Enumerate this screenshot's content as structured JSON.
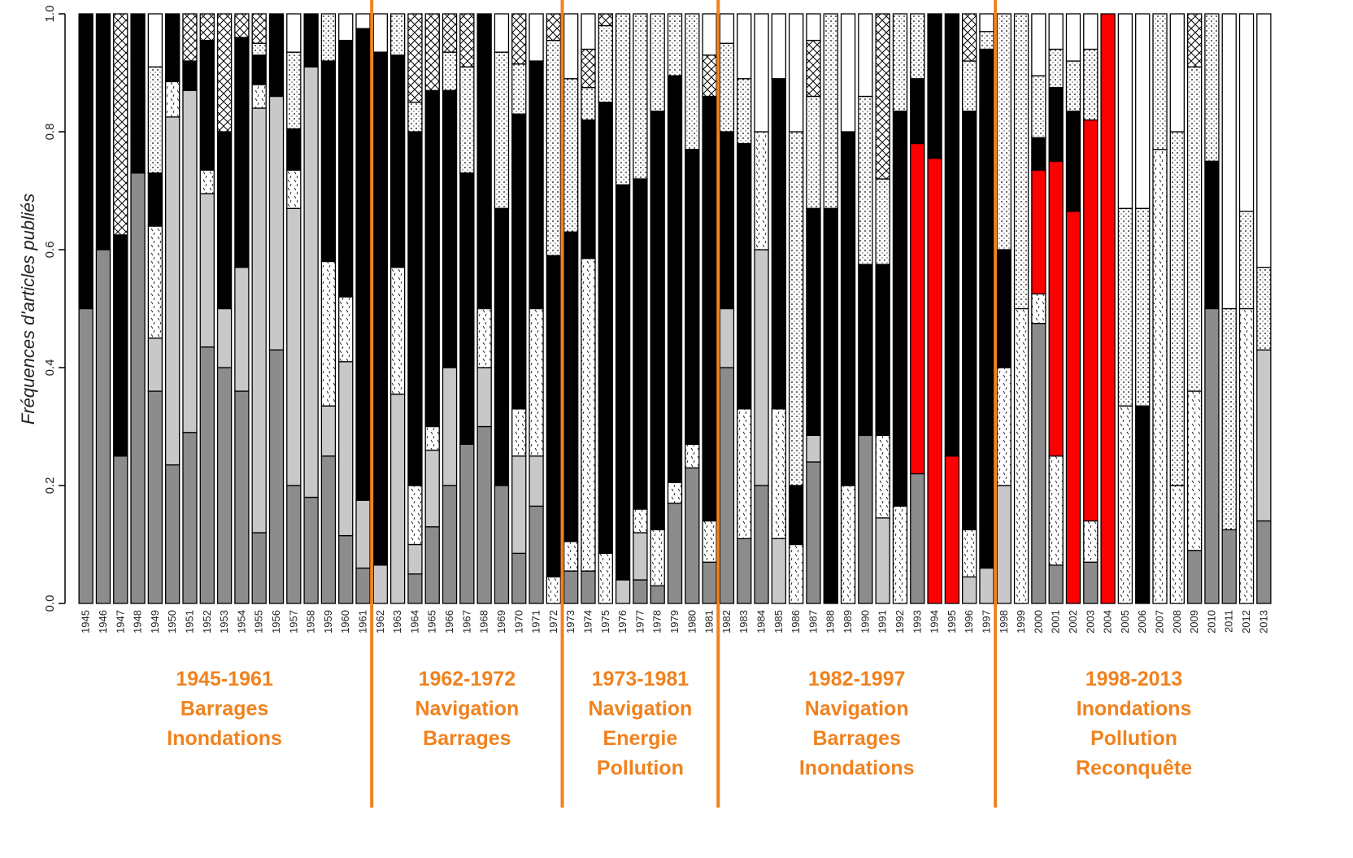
{
  "chart_data": {
    "type": "stacked-bar",
    "y_label": "Fréquences d'articles publiés",
    "categories": [
      "1945",
      "1946",
      "1947",
      "1948",
      "1949",
      "1950",
      "1951",
      "1952",
      "1953",
      "1954",
      "1955",
      "1956",
      "1957",
      "1958",
      "1959",
      "1960",
      "1961",
      "1962",
      "1963",
      "1964",
      "1965",
      "1966",
      "1967",
      "1968",
      "1969",
      "1970",
      "1971",
      "1972",
      "1973",
      "1974",
      "1975",
      "1976",
      "1977",
      "1978",
      "1979",
      "1980",
      "1981",
      "1982",
      "1983",
      "1984",
      "1985",
      "1986",
      "1987",
      "1988",
      "1989",
      "1990",
      "1991",
      "1992",
      "1993",
      "1994",
      "1995",
      "1996",
      "1997",
      "1998",
      "1999",
      "2000",
      "2001",
      "2002",
      "2003",
      "2004",
      "2005",
      "2006",
      "2007",
      "2008",
      "2009",
      "2010",
      "2011",
      "2012",
      "2013"
    ],
    "ylim": [
      0,
      1
    ],
    "yticks": [
      {
        "value": 0,
        "label": "0.0"
      },
      {
        "value": 0.2,
        "label": "0.2"
      },
      {
        "value": 0.4,
        "label": "0.4"
      },
      {
        "value": 0.6,
        "label": "0.6"
      },
      {
        "value": 0.8,
        "label": "0.8"
      },
      {
        "value": 1,
        "label": "1.0"
      }
    ],
    "series": [
      {
        "color": "#8c8c8c",
        "values": [
          0.5,
          0.6,
          0.25,
          0.73,
          0.36,
          0.235,
          0.29,
          0.435,
          0.4,
          0.36,
          0.12,
          0.43,
          0.2,
          0.18,
          0.25,
          0.115,
          0.06,
          0,
          0,
          0.05,
          0.13,
          0.2,
          0.27,
          0.3,
          0.2,
          0.085,
          0.165,
          0,
          0.055,
          0.055,
          0,
          0,
          0.04,
          0.03,
          0.17,
          0.23,
          0.07,
          0.4,
          0.11,
          0.2,
          0,
          0,
          0.24,
          0,
          0,
          0.285,
          0,
          0,
          0.22,
          0,
          0,
          0,
          0,
          0,
          0,
          0.475,
          0.065,
          0,
          0.07,
          0,
          0,
          0,
          0,
          0,
          0.09,
          0.5,
          0.125,
          0,
          0.14
        ]
      },
      {
        "color": "#c8c8c8",
        "values": [
          0,
          0,
          0,
          0,
          0.09,
          0.59,
          0.58,
          0.26,
          0.1,
          0.21,
          0.72,
          0.43,
          0.47,
          0.73,
          0.085,
          0.295,
          0.115,
          0.065,
          0.355,
          0.05,
          0.13,
          0.2,
          0,
          0.1,
          0,
          0.165,
          0.085,
          0,
          0,
          0,
          0,
          0.04,
          0.08,
          0,
          0,
          0,
          0,
          0.1,
          0,
          0.4,
          0.11,
          0,
          0.045,
          0,
          0,
          0,
          0.145,
          0,
          0,
          0,
          0,
          0.045,
          0.06,
          0.2,
          0,
          0,
          0,
          0,
          0,
          0,
          0,
          0,
          0,
          0,
          0,
          0,
          0,
          0,
          0.29
        ]
      },
      {
        "color": "#ffffff",
        "pattern": "dashes",
        "values": [
          0,
          0,
          0,
          0,
          0.19,
          0.06,
          0,
          0.04,
          0,
          0,
          0.04,
          0,
          0.065,
          0,
          0.245,
          0.11,
          0,
          0,
          0.215,
          0.1,
          0.04,
          0,
          0,
          0.1,
          0,
          0.08,
          0.25,
          0.045,
          0.05,
          0.53,
          0.085,
          0,
          0.04,
          0.095,
          0.035,
          0.04,
          0.07,
          0,
          0.22,
          0.2,
          0.22,
          0.1,
          0,
          0,
          0.2,
          0,
          0.14,
          0.165,
          0,
          0,
          0,
          0.08,
          0,
          0.2,
          0.5,
          0.05,
          0.185,
          0,
          0.07,
          0,
          0.335,
          0,
          0.77,
          0.2,
          0.27,
          0,
          0,
          0.5,
          0
        ]
      },
      {
        "color": "#ff0000",
        "values": [
          0,
          0,
          0,
          0,
          0,
          0,
          0,
          0,
          0,
          0,
          0,
          0,
          0,
          0,
          0,
          0,
          0,
          0,
          0,
          0,
          0,
          0,
          0,
          0,
          0,
          0,
          0,
          0,
          0,
          0,
          0,
          0,
          0,
          0,
          0,
          0,
          0,
          0,
          0,
          0,
          0,
          0,
          0,
          0,
          0,
          0,
          0,
          0,
          0.56,
          0.755,
          0.25,
          0,
          0,
          0,
          0,
          0.21,
          0.5,
          0.665,
          0.68,
          1,
          0,
          0,
          0,
          0,
          0,
          0,
          0,
          0,
          0
        ]
      },
      {
        "color": "#000000",
        "values": [
          0.5,
          0.4,
          0.375,
          0.27,
          0.09,
          0.115,
          0.05,
          0.22,
          0.3,
          0.39,
          0.05,
          0.14,
          0.07,
          0.09,
          0.34,
          0.435,
          0.8,
          0.87,
          0.36,
          0.6,
          0.57,
          0.47,
          0.46,
          0.5,
          0.47,
          0.5,
          0.42,
          0.545,
          0.525,
          0.235,
          0.765,
          0.67,
          0.56,
          0.71,
          0.69,
          0.5,
          0.72,
          0.3,
          0.45,
          0,
          0.56,
          0.1,
          0.385,
          0.67,
          0.6,
          0.29,
          0.29,
          0.67,
          0.11,
          0.245,
          0.75,
          0.71,
          0.88,
          0.2,
          0,
          0.055,
          0.125,
          0.17,
          0,
          0,
          0,
          0.335,
          0,
          0,
          0,
          0.25,
          0,
          0,
          0
        ]
      },
      {
        "color": "#ffffff",
        "pattern": "dots",
        "values": [
          0,
          0,
          0,
          0,
          0.18,
          0,
          0,
          0,
          0,
          0,
          0.02,
          0,
          0.13,
          0,
          0.08,
          0,
          0,
          0,
          0.07,
          0.05,
          0,
          0.065,
          0.18,
          0,
          0.265,
          0.085,
          0,
          0.365,
          0.26,
          0.055,
          0.13,
          0.29,
          0.28,
          0.165,
          0.105,
          0.23,
          0,
          0.15,
          0.11,
          0,
          0,
          0.6,
          0.19,
          0.33,
          0,
          0.285,
          0.145,
          0.165,
          0.11,
          0,
          0,
          0.085,
          0.03,
          0.4,
          0.5,
          0.105,
          0.065,
          0.085,
          0.12,
          0,
          0.335,
          0.335,
          0.23,
          0.6,
          0.55,
          0.25,
          0.375,
          0.165,
          0.14
        ]
      },
      {
        "color": "#ffffff",
        "pattern": "cross",
        "values": [
          0,
          0,
          0.375,
          0,
          0,
          0,
          0.08,
          0.045,
          0.2,
          0.04,
          0.05,
          0,
          0,
          0,
          0,
          0,
          0,
          0,
          0,
          0.15,
          0.13,
          0.065,
          0.09,
          0,
          0,
          0.085,
          0,
          0.045,
          0,
          0.065,
          0.02,
          0,
          0,
          0,
          0,
          0,
          0.07,
          0,
          0,
          0,
          0,
          0,
          0.095,
          0,
          0,
          0,
          0.28,
          0,
          0,
          0,
          0,
          0.08,
          0,
          0,
          0,
          0,
          0,
          0,
          0,
          0,
          0,
          0,
          0,
          0,
          0.09,
          0,
          0,
          0,
          0
        ]
      },
      {
        "color": "#ffffff",
        "values": [
          0,
          0,
          0,
          0,
          0.09,
          0,
          0,
          0,
          0,
          0,
          0,
          0,
          0.065,
          0,
          0,
          0.045,
          0.025,
          0.065,
          0,
          0,
          0,
          0,
          0,
          0,
          0.065,
          0,
          0.08,
          0,
          0.11,
          0.06,
          0,
          0,
          0,
          0,
          0,
          0,
          0.07,
          0.05,
          0.11,
          0.2,
          0.11,
          0.2,
          0.045,
          0,
          0.2,
          0.14,
          0,
          0,
          0,
          0,
          0,
          0,
          0.03,
          0,
          0,
          0.105,
          0.06,
          0.08,
          0.06,
          0,
          0.33,
          0.33,
          0,
          0.2,
          0,
          0,
          0.5,
          0.335,
          0.43
        ]
      }
    ],
    "periods": [
      {
        "lines": [
          "1945-1961",
          "Barrages",
          "Inondations"
        ]
      },
      {
        "lines": [
          "1962-1972",
          "Navigation",
          "Barrages"
        ]
      },
      {
        "lines": [
          "1973-1981",
          "Navigation",
          "Energie",
          "Pollution"
        ]
      },
      {
        "lines": [
          "1982-1997",
          "Navigation",
          "Barrages",
          "Inondations"
        ]
      },
      {
        "lines": [
          "1998-2013",
          "Inondations",
          "Pollution",
          "Reconquête"
        ]
      }
    ]
  }
}
